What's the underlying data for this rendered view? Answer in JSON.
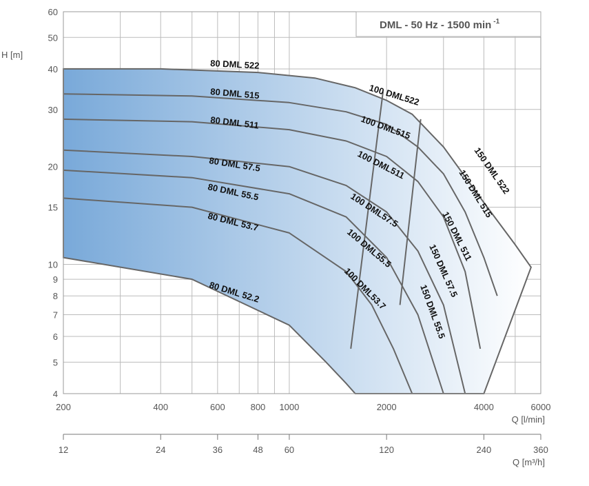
{
  "chart_data": {
    "type": "line",
    "title": "DML - 50 Hz - 1500 min",
    "title_superscript": "-1",
    "ylabel": "H [m]",
    "xlabel": "Q [l/min]",
    "x2label": "Q [m³/h]",
    "x_scale": "log",
    "y_scale": "log",
    "xlim": [
      200,
      6000
    ],
    "ylim": [
      4,
      60
    ],
    "grid": true,
    "y_ticks": [
      "4",
      "5",
      "6",
      "7",
      "8",
      "9",
      "10",
      "15",
      "20",
      "30",
      "40",
      "50",
      "60"
    ],
    "x_ticks": [
      "200",
      "400",
      "600",
      "800",
      "1000",
      "2000",
      "4000",
      "6000"
    ],
    "x2_ticks": [
      "12",
      "24",
      "36",
      "48",
      "60",
      "120",
      "240",
      "360"
    ],
    "colors": {
      "fill_dark": "#79a9d9",
      "fill_light": "#ffffff",
      "curve": "#666666",
      "grid": "#bbbbbb"
    },
    "series": [
      {
        "name": "80 DML 522",
        "x": [
          200,
          400,
          800,
          1200,
          1600,
          2000,
          2400,
          3000,
          4000,
          5000,
          5600
        ],
        "y": [
          40,
          40,
          39,
          37.5,
          35,
          32,
          29,
          23,
          15.5,
          11.5,
          9.8
        ]
      },
      {
        "name": "80 DML 515",
        "x": [
          200,
          500,
          1000,
          1500,
          2000,
          2500,
          3000,
          3500,
          4000,
          4400
        ],
        "y": [
          33.5,
          33,
          31.5,
          29.5,
          27,
          23,
          19,
          14.5,
          10.5,
          8
        ]
      },
      {
        "name": "80 DML 511",
        "x": [
          200,
          500,
          1000,
          1500,
          2000,
          2500,
          3000,
          3500,
          3900
        ],
        "y": [
          28,
          27.5,
          26,
          24,
          21.5,
          18,
          14,
          9.5,
          5.5
        ]
      },
      {
        "name": "80 DML 57.5",
        "x": [
          200,
          500,
          1000,
          1500,
          2000,
          2500,
          3000,
          3500
        ],
        "y": [
          22.5,
          21.5,
          20,
          17.5,
          14.5,
          11,
          7.5,
          4
        ]
      },
      {
        "name": "80 DML 55.5",
        "x": [
          200,
          500,
          1000,
          1500,
          2000,
          2500,
          3000
        ],
        "y": [
          19.5,
          18.5,
          16.5,
          14,
          10.5,
          7,
          4
        ]
      },
      {
        "name": "80 DML 53.7",
        "x": [
          200,
          500,
          1000,
          1500,
          1800,
          2100,
          2400
        ],
        "y": [
          16,
          15,
          12.5,
          9.5,
          7.5,
          5.5,
          4
        ]
      },
      {
        "name": "80 DML 52.2",
        "x": [
          200,
          500,
          1000,
          1300,
          1500,
          1600
        ],
        "y": [
          10.5,
          9,
          6.5,
          5,
          4.3,
          4
        ]
      }
    ],
    "annotations": [
      "80 DML 522",
      "80 DML 515",
      "80 DML 511",
      "80 DML 57.5",
      "80 DML 55.5",
      "80 DML 53.7",
      "80 DML 52.2",
      "100 DML522",
      "100 DML515",
      "100 DML511",
      "100 DML57.5",
      "100 DML55.5",
      "100 DML53.7",
      "150 DML 522",
      "150 DML 515",
      "150 DML 511",
      "150 DML 57.5",
      "150 DML 55.5"
    ]
  }
}
